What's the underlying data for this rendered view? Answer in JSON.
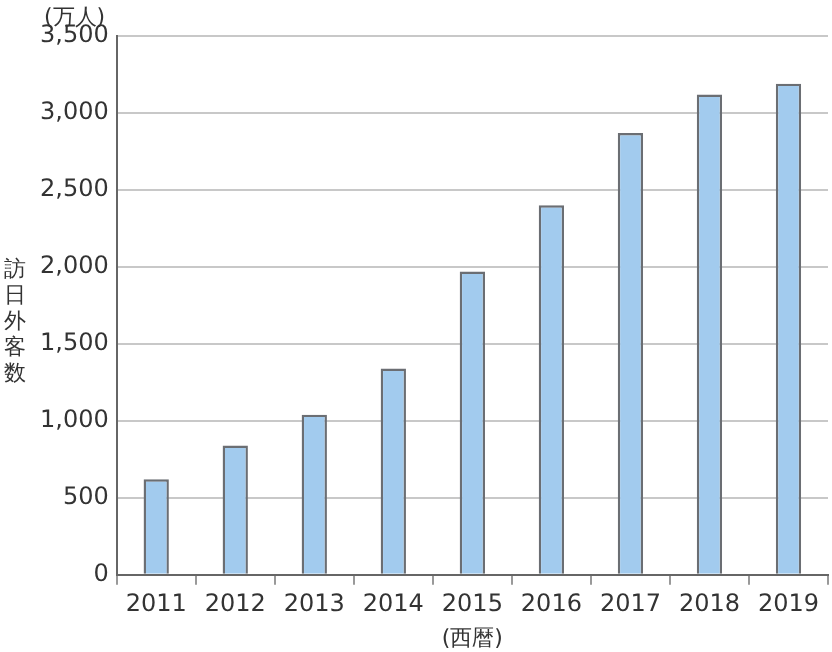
{
  "chart_data": {
    "type": "bar",
    "ylabel": "訪日外客数",
    "xlabel": "(西暦)",
    "annotations": [
      "(万人)"
    ],
    "categories": [
      "2011",
      "2012",
      "2013",
      "2014",
      "2015",
      "2016",
      "2017",
      "2018",
      "2019"
    ],
    "values": [
      620,
      840,
      1040,
      1340,
      1970,
      2400,
      2870,
      3120,
      3190
    ],
    "color": "#a2cbee",
    "ylim": [
      0,
      3500
    ],
    "yticks": [
      0,
      500,
      {
        "value": 1000,
        "label": "1,000"
      },
      {
        "value": 1500,
        "label": "1,500"
      },
      {
        "value": 2000,
        "label": "2,000"
      },
      {
        "value": 2500,
        "label": "2,500"
      },
      {
        "value": 3000,
        "label": "3,000"
      },
      {
        "value": 3500,
        "label": "3,500"
      }
    ],
    "grid": "y",
    "legend": false
  }
}
